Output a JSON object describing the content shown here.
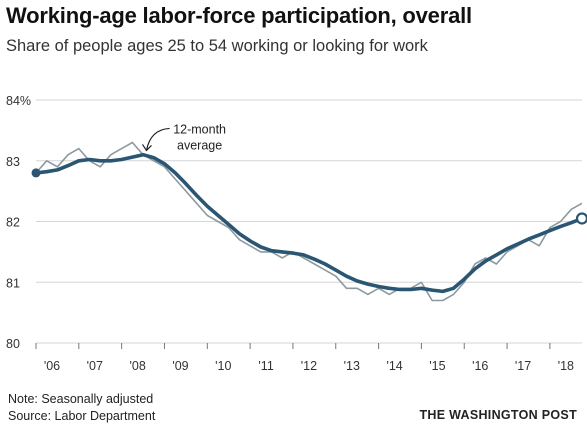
{
  "title": "Working-age labor-force participation, overall",
  "subtitle": "Share of people ages 25 to 54 working or looking for work",
  "note": "Note: Seasonally adjusted",
  "source": "Source: Labor Department",
  "credit": "THE WASHINGTON POST",
  "chart_data": {
    "type": "line",
    "title": "Working-age labor-force participation, overall",
    "subtitle": "Share of people ages 25 to 54 working or looking for work",
    "xlim": [
      2006.0,
      2018.75
    ],
    "ylim": [
      80,
      84
    ],
    "y_ticks": [
      {
        "value": 84,
        "label": "84%"
      },
      {
        "value": 83,
        "label": "83"
      },
      {
        "value": 82,
        "label": "82"
      },
      {
        "value": 81,
        "label": "81"
      },
      {
        "value": 80,
        "label": "80"
      }
    ],
    "x_ticks": [
      {
        "value": 2006,
        "label": "'06"
      },
      {
        "value": 2007,
        "label": "'07"
      },
      {
        "value": 2008,
        "label": "'08"
      },
      {
        "value": 2009,
        "label": "'09"
      },
      {
        "value": 2010,
        "label": "'10"
      },
      {
        "value": 2011,
        "label": "'11"
      },
      {
        "value": 2012,
        "label": "'12"
      },
      {
        "value": 2013,
        "label": "'13"
      },
      {
        "value": 2014,
        "label": "'14"
      },
      {
        "value": 2015,
        "label": "'15"
      },
      {
        "value": 2016,
        "label": "'16"
      },
      {
        "value": 2017,
        "label": "'17"
      },
      {
        "value": 2018,
        "label": "'18"
      }
    ],
    "grid": "horizontal",
    "annotation": {
      "lines": [
        "12-month",
        "average"
      ],
      "x": 2008.7,
      "y": 83.45
    },
    "colors": {
      "monthly": "#8c9aa0",
      "average": "#2a5573",
      "grid": "#d6d6d6"
    },
    "series": [
      {
        "key": "monthly",
        "x": [
          2006.0,
          2006.25,
          2006.5,
          2006.75,
          2007.0,
          2007.25,
          2007.5,
          2007.75,
          2008.0,
          2008.25,
          2008.5,
          2008.75,
          2009.0,
          2009.25,
          2009.5,
          2009.75,
          2010.0,
          2010.25,
          2010.5,
          2010.75,
          2011.0,
          2011.25,
          2011.5,
          2011.75,
          2012.0,
          2012.25,
          2012.5,
          2012.75,
          2013.0,
          2013.25,
          2013.5,
          2013.75,
          2014.0,
          2014.25,
          2014.5,
          2014.75,
          2015.0,
          2015.25,
          2015.5,
          2015.75,
          2016.0,
          2016.25,
          2016.5,
          2016.75,
          2017.0,
          2017.25,
          2017.5,
          2017.75,
          2018.0,
          2018.25,
          2018.5,
          2018.75
        ],
        "y": [
          82.8,
          83.0,
          82.9,
          83.1,
          83.2,
          83.0,
          82.9,
          83.1,
          83.2,
          83.3,
          83.1,
          83.0,
          82.9,
          82.7,
          82.5,
          82.3,
          82.1,
          82.0,
          81.9,
          81.7,
          81.6,
          81.5,
          81.5,
          81.4,
          81.5,
          81.4,
          81.3,
          81.2,
          81.1,
          80.9,
          80.9,
          80.8,
          80.9,
          80.8,
          80.9,
          80.9,
          81.0,
          80.7,
          80.7,
          80.8,
          81.0,
          81.3,
          81.4,
          81.3,
          81.5,
          81.6,
          81.7,
          81.6,
          81.9,
          82.0,
          82.2,
          82.3
        ]
      },
      {
        "key": "average",
        "x": [
          2006.0,
          2006.25,
          2006.5,
          2006.75,
          2007.0,
          2007.25,
          2007.5,
          2007.75,
          2008.0,
          2008.25,
          2008.5,
          2008.75,
          2009.0,
          2009.25,
          2009.5,
          2009.75,
          2010.0,
          2010.25,
          2010.5,
          2010.75,
          2011.0,
          2011.25,
          2011.5,
          2011.75,
          2012.0,
          2012.25,
          2012.5,
          2012.75,
          2013.0,
          2013.25,
          2013.5,
          2013.75,
          2014.0,
          2014.25,
          2014.5,
          2014.75,
          2015.0,
          2015.25,
          2015.5,
          2015.75,
          2016.0,
          2016.25,
          2016.5,
          2016.75,
          2017.0,
          2017.25,
          2017.5,
          2017.75,
          2018.0,
          2018.25,
          2018.5,
          2018.75
        ],
        "y": [
          82.8,
          82.82,
          82.85,
          82.92,
          83.0,
          83.02,
          83.0,
          83.0,
          83.02,
          83.06,
          83.1,
          83.05,
          82.95,
          82.8,
          82.62,
          82.43,
          82.25,
          82.1,
          81.95,
          81.8,
          81.68,
          81.58,
          81.52,
          81.5,
          81.48,
          81.45,
          81.38,
          81.3,
          81.2,
          81.1,
          81.02,
          80.97,
          80.93,
          80.9,
          80.88,
          80.88,
          80.9,
          80.87,
          80.85,
          80.9,
          81.05,
          81.22,
          81.35,
          81.45,
          81.55,
          81.63,
          81.71,
          81.78,
          81.85,
          81.92,
          81.98,
          82.05
        ]
      }
    ]
  }
}
